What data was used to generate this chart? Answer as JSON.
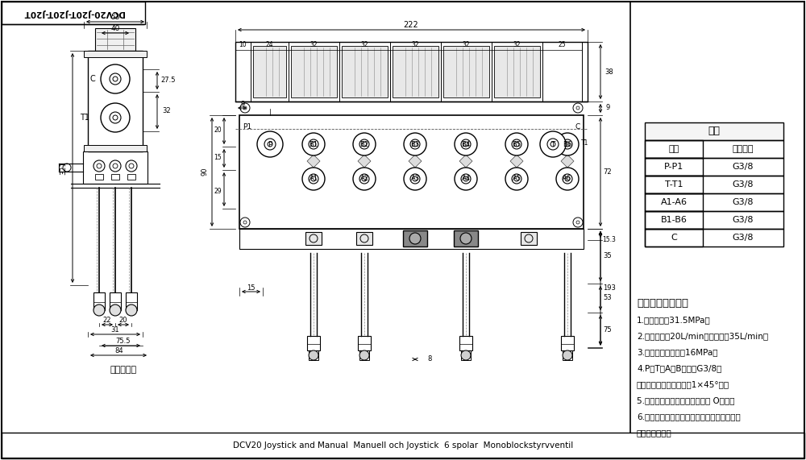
{
  "bg_color": "#ffffff",
  "line_color": "#000000",
  "title_text": "DCV20-J20T-J20T-J20T",
  "table_title": "阁体",
  "table_headers": [
    "接口",
    "蝶纹规格"
  ],
  "table_rows": [
    [
      "P-P1",
      "G3/8"
    ],
    [
      "T-T1",
      "G3/8"
    ],
    [
      "A1-A6",
      "G3/8"
    ],
    [
      "B1-B6",
      "G3/8"
    ],
    [
      "C",
      "G3/8"
    ]
  ],
  "tech_title": "技术要求及参数：",
  "tech_lines": [
    "1.额定压力：31.5MPa；",
    "2.额定流量：20L/min，最大流量35L/min；",
    "3.安装阀调定压力：16MPa；",
    "4.P、T、A、B口均为G3/8，",
    "均为平面密封，蝶纹孔口1×45°角。",
    "5.控制方式：手动、弹簧复位， O型阀；",
    "6.阀体表面硬化处理，安全阀及蝶纹锁死，支",
    "架后盖为铝本色"
  ],
  "hydraulic_label": "液压原理图",
  "footer_text": "DCV20 Joystick and Manual  Manuell och Joystick  6 spolar  Monoblockstyrvventil"
}
